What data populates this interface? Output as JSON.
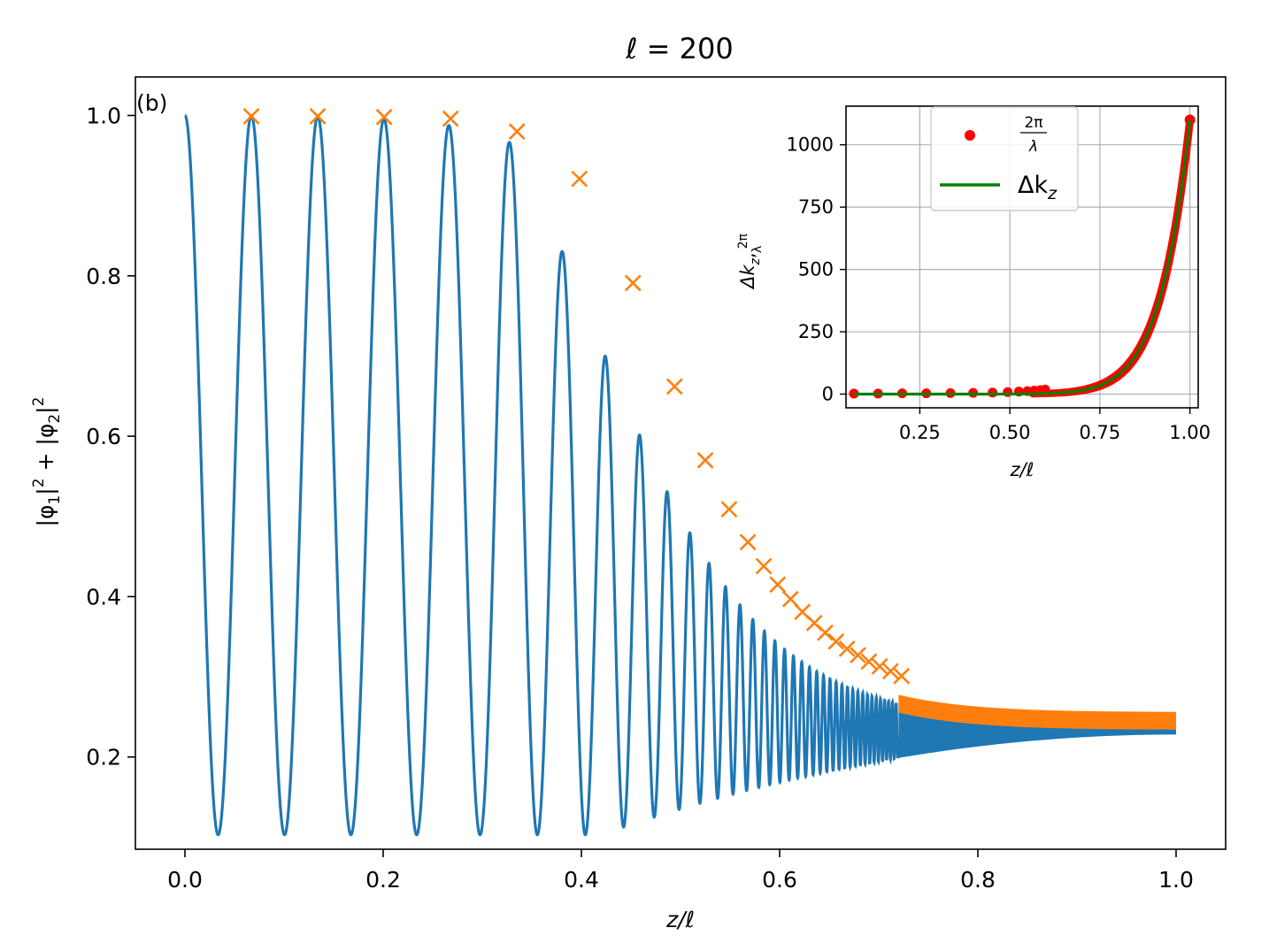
{
  "chart_data": [
    {
      "type": "line",
      "title": "ℓ = 200",
      "panel_label": "(b)",
      "xlabel": "z/ℓ",
      "ylabel": "|φ1|² + |φ2|²",
      "xlim": [
        -0.05,
        1.05
      ],
      "ylim": [
        0.085,
        1.048
      ],
      "xticks": [
        0.0,
        0.2,
        0.4,
        0.6,
        0.8,
        1.0
      ],
      "xtick_labels": [
        "0.0",
        "0.2",
        "0.4",
        "0.6",
        "0.8",
        "1.0"
      ],
      "yticks": [
        0.2,
        0.4,
        0.6,
        0.8,
        1.0
      ],
      "ytick_labels": [
        "0.2",
        "0.4",
        "0.6",
        "0.8",
        "1.0"
      ],
      "grid": false,
      "series": [
        {
          "name": "|φ1|² + |φ2|²",
          "kind": "oscillating-line",
          "color": "#1f77b4",
          "description_values": {
            "start": [
              0.0,
              1.0
            ],
            "first_minimum": [
              0.033,
              0.103
            ],
            "end_range": [
              0.228,
              0.25
            ]
          }
        },
        {
          "name": "maxima",
          "kind": "x-markers",
          "color": "#ff7f0e",
          "points": [
            [
              0.067,
              0.999
            ],
            [
              0.134,
              0.999
            ],
            [
              0.201,
              0.998
            ],
            [
              0.268,
              0.996
            ],
            [
              0.335,
              0.98
            ],
            [
              0.398,
              0.921
            ],
            [
              0.452,
              0.791
            ],
            [
              0.494,
              0.662
            ],
            [
              0.525,
              0.57
            ],
            [
              0.549,
              0.509
            ],
            [
              0.568,
              0.468
            ],
            [
              0.584,
              0.438
            ],
            [
              0.598,
              0.415
            ],
            [
              0.611,
              0.397
            ],
            [
              0.623,
              0.381
            ],
            [
              0.635,
              0.367
            ],
            [
              0.646,
              0.355
            ],
            [
              0.657,
              0.344
            ],
            [
              0.668,
              0.335
            ],
            [
              0.679,
              0.327
            ],
            [
              0.69,
              0.319
            ],
            [
              0.701,
              0.313
            ],
            [
              0.712,
              0.307
            ],
            [
              0.723,
              0.301
            ]
          ],
          "continuous_tail": {
            "x_range": [
              0.72,
              1.0
            ],
            "y_end": 0.245
          }
        }
      ]
    },
    {
      "type": "line",
      "role": "inset",
      "xlabel": "z/ℓ",
      "ylabel": "Δk_z, 2π/λ",
      "xlim": [
        0.045,
        1.023
      ],
      "ylim": [
        -55,
        1155
      ],
      "xticks": [
        0.25,
        0.5,
        0.75,
        1.0
      ],
      "xtick_labels": [
        "0.25",
        "0.50",
        "0.75",
        "1.00"
      ],
      "yticks": [
        0,
        250,
        500,
        750,
        1000
      ],
      "ytick_labels": [
        "0",
        "250",
        "500",
        "750",
        "1000"
      ],
      "grid": true,
      "legend_position": "top-center",
      "series": [
        {
          "name": "2π/λ",
          "kind": "scatter",
          "color": "#ff0000",
          "points": [
            [
              0.067,
              2
            ],
            [
              0.134,
              2
            ],
            [
              0.201,
              3
            ],
            [
              0.268,
              3
            ],
            [
              0.335,
              4
            ],
            [
              0.398,
              5
            ],
            [
              0.452,
              6
            ],
            [
              0.494,
              8
            ],
            [
              0.525,
              10
            ],
            [
              0.549,
              12
            ],
            [
              0.568,
              14
            ],
            [
              0.584,
              16
            ],
            [
              0.598,
              18
            ]
          ],
          "dense_curve": "Δk_z ≈ 1100·(z/ℓ)^12 for z/ℓ > 0.6"
        },
        {
          "name": "Δk_z",
          "kind": "line",
          "color": "#008000",
          "formula": "1100·(z/ℓ)^12"
        }
      ],
      "legend": {
        "entries": [
          {
            "label_numerator": "2π",
            "label_denominator": "λ",
            "marker": "dot",
            "color": "#ff0000"
          },
          {
            "label": "Δk",
            "label_sub": "z",
            "marker": "line",
            "color": "#008000"
          }
        ]
      }
    }
  ],
  "labels": {
    "main_ylabel_parts": [
      "|φ",
      "1",
      "|",
      "2",
      " + |φ",
      "2",
      "|",
      "2"
    ],
    "inset_ylabel_parts": [
      "Δk",
      "z",
      ",",
      "2π",
      "λ"
    ],
    "title_italic": "ℓ",
    "title_rest": " = 200"
  }
}
